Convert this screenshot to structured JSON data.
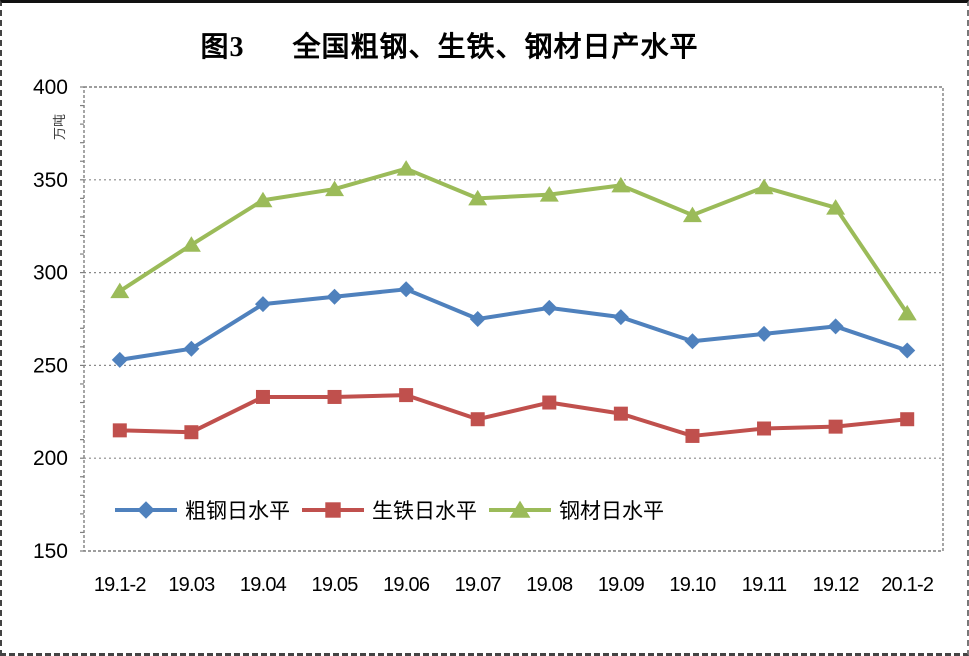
{
  "title": "图3      全国粗钢、生铁、钢材日产水平",
  "colors": {
    "gridline": "#8a8a8a",
    "axis": "#7f7f7f",
    "tick_text": "#000000",
    "y_axis_title_text": "#3a3a3a",
    "page_border": "#333333",
    "background": "#ffffff"
  },
  "chart_data": {
    "type": "line",
    "title": "图3 全国粗钢、生铁、钢材日产水平",
    "xlabel": "",
    "ylabel": "万吨",
    "ylim": [
      150,
      400
    ],
    "y_ticks": [
      150,
      200,
      250,
      300,
      350,
      400
    ],
    "y_minor_tick_step": 10,
    "grid": true,
    "legend_position": "inside-bottom-left",
    "categories": [
      "19.1-2",
      "19.03",
      "19.04",
      "19.05",
      "19.06",
      "19.07",
      "19.08",
      "19.09",
      "19.10",
      "19.11",
      "19.12",
      "20.1-2"
    ],
    "series": [
      {
        "name": "粗钢日水平",
        "marker": "diamond",
        "color": "#4F81BD",
        "values": [
          253,
          259,
          283,
          287,
          291,
          275,
          281,
          276,
          263,
          267,
          271,
          258
        ]
      },
      {
        "name": "生铁日水平",
        "marker": "square",
        "color": "#C0504D",
        "values": [
          215,
          214,
          233,
          233,
          234,
          221,
          230,
          224,
          212,
          216,
          217,
          221
        ]
      },
      {
        "name": "钢材日水平",
        "marker": "triangle",
        "color": "#9BBB59",
        "values": [
          290,
          315,
          339,
          345,
          356,
          340,
          342,
          347,
          331,
          346,
          335,
          278
        ]
      }
    ]
  }
}
